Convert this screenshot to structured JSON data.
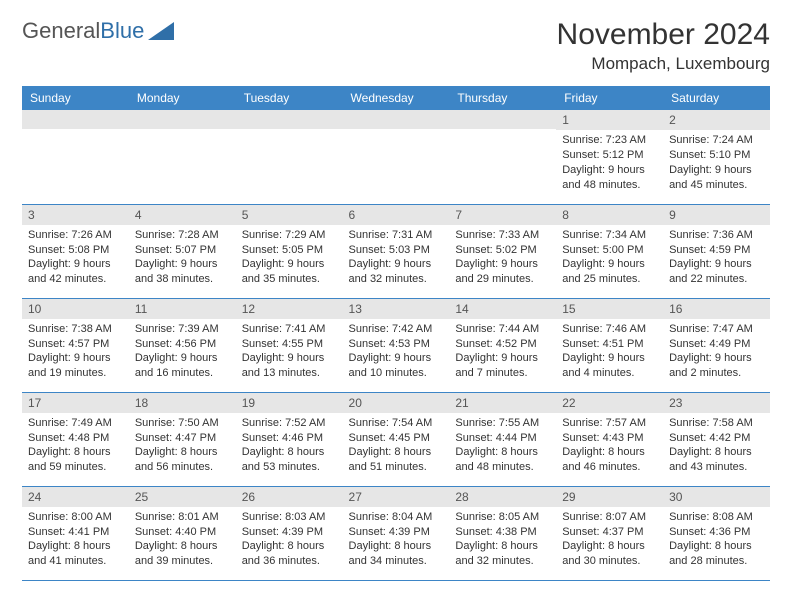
{
  "logo": {
    "text1": "General",
    "text2": "Blue"
  },
  "title": "November 2024",
  "location": "Mompach, Luxembourg",
  "day_headers": [
    "Sunday",
    "Monday",
    "Tuesday",
    "Wednesday",
    "Thursday",
    "Friday",
    "Saturday"
  ],
  "colors": {
    "header_bg": "#3d85c6",
    "header_text": "#ffffff",
    "daynum_bg": "#e6e6e6",
    "border": "#3d85c6",
    "logo_blue": "#2f6fa8"
  },
  "weeks": [
    [
      {
        "n": "",
        "sr": "",
        "ss": "",
        "dl": ""
      },
      {
        "n": "",
        "sr": "",
        "ss": "",
        "dl": ""
      },
      {
        "n": "",
        "sr": "",
        "ss": "",
        "dl": ""
      },
      {
        "n": "",
        "sr": "",
        "ss": "",
        "dl": ""
      },
      {
        "n": "",
        "sr": "",
        "ss": "",
        "dl": ""
      },
      {
        "n": "1",
        "sr": "Sunrise: 7:23 AM",
        "ss": "Sunset: 5:12 PM",
        "dl": "Daylight: 9 hours and 48 minutes."
      },
      {
        "n": "2",
        "sr": "Sunrise: 7:24 AM",
        "ss": "Sunset: 5:10 PM",
        "dl": "Daylight: 9 hours and 45 minutes."
      }
    ],
    [
      {
        "n": "3",
        "sr": "Sunrise: 7:26 AM",
        "ss": "Sunset: 5:08 PM",
        "dl": "Daylight: 9 hours and 42 minutes."
      },
      {
        "n": "4",
        "sr": "Sunrise: 7:28 AM",
        "ss": "Sunset: 5:07 PM",
        "dl": "Daylight: 9 hours and 38 minutes."
      },
      {
        "n": "5",
        "sr": "Sunrise: 7:29 AM",
        "ss": "Sunset: 5:05 PM",
        "dl": "Daylight: 9 hours and 35 minutes."
      },
      {
        "n": "6",
        "sr": "Sunrise: 7:31 AM",
        "ss": "Sunset: 5:03 PM",
        "dl": "Daylight: 9 hours and 32 minutes."
      },
      {
        "n": "7",
        "sr": "Sunrise: 7:33 AM",
        "ss": "Sunset: 5:02 PM",
        "dl": "Daylight: 9 hours and 29 minutes."
      },
      {
        "n": "8",
        "sr": "Sunrise: 7:34 AM",
        "ss": "Sunset: 5:00 PM",
        "dl": "Daylight: 9 hours and 25 minutes."
      },
      {
        "n": "9",
        "sr": "Sunrise: 7:36 AM",
        "ss": "Sunset: 4:59 PM",
        "dl": "Daylight: 9 hours and 22 minutes."
      }
    ],
    [
      {
        "n": "10",
        "sr": "Sunrise: 7:38 AM",
        "ss": "Sunset: 4:57 PM",
        "dl": "Daylight: 9 hours and 19 minutes."
      },
      {
        "n": "11",
        "sr": "Sunrise: 7:39 AM",
        "ss": "Sunset: 4:56 PM",
        "dl": "Daylight: 9 hours and 16 minutes."
      },
      {
        "n": "12",
        "sr": "Sunrise: 7:41 AM",
        "ss": "Sunset: 4:55 PM",
        "dl": "Daylight: 9 hours and 13 minutes."
      },
      {
        "n": "13",
        "sr": "Sunrise: 7:42 AM",
        "ss": "Sunset: 4:53 PM",
        "dl": "Daylight: 9 hours and 10 minutes."
      },
      {
        "n": "14",
        "sr": "Sunrise: 7:44 AM",
        "ss": "Sunset: 4:52 PM",
        "dl": "Daylight: 9 hours and 7 minutes."
      },
      {
        "n": "15",
        "sr": "Sunrise: 7:46 AM",
        "ss": "Sunset: 4:51 PM",
        "dl": "Daylight: 9 hours and 4 minutes."
      },
      {
        "n": "16",
        "sr": "Sunrise: 7:47 AM",
        "ss": "Sunset: 4:49 PM",
        "dl": "Daylight: 9 hours and 2 minutes."
      }
    ],
    [
      {
        "n": "17",
        "sr": "Sunrise: 7:49 AM",
        "ss": "Sunset: 4:48 PM",
        "dl": "Daylight: 8 hours and 59 minutes."
      },
      {
        "n": "18",
        "sr": "Sunrise: 7:50 AM",
        "ss": "Sunset: 4:47 PM",
        "dl": "Daylight: 8 hours and 56 minutes."
      },
      {
        "n": "19",
        "sr": "Sunrise: 7:52 AM",
        "ss": "Sunset: 4:46 PM",
        "dl": "Daylight: 8 hours and 53 minutes."
      },
      {
        "n": "20",
        "sr": "Sunrise: 7:54 AM",
        "ss": "Sunset: 4:45 PM",
        "dl": "Daylight: 8 hours and 51 minutes."
      },
      {
        "n": "21",
        "sr": "Sunrise: 7:55 AM",
        "ss": "Sunset: 4:44 PM",
        "dl": "Daylight: 8 hours and 48 minutes."
      },
      {
        "n": "22",
        "sr": "Sunrise: 7:57 AM",
        "ss": "Sunset: 4:43 PM",
        "dl": "Daylight: 8 hours and 46 minutes."
      },
      {
        "n": "23",
        "sr": "Sunrise: 7:58 AM",
        "ss": "Sunset: 4:42 PM",
        "dl": "Daylight: 8 hours and 43 minutes."
      }
    ],
    [
      {
        "n": "24",
        "sr": "Sunrise: 8:00 AM",
        "ss": "Sunset: 4:41 PM",
        "dl": "Daylight: 8 hours and 41 minutes."
      },
      {
        "n": "25",
        "sr": "Sunrise: 8:01 AM",
        "ss": "Sunset: 4:40 PM",
        "dl": "Daylight: 8 hours and 39 minutes."
      },
      {
        "n": "26",
        "sr": "Sunrise: 8:03 AM",
        "ss": "Sunset: 4:39 PM",
        "dl": "Daylight: 8 hours and 36 minutes."
      },
      {
        "n": "27",
        "sr": "Sunrise: 8:04 AM",
        "ss": "Sunset: 4:39 PM",
        "dl": "Daylight: 8 hours and 34 minutes."
      },
      {
        "n": "28",
        "sr": "Sunrise: 8:05 AM",
        "ss": "Sunset: 4:38 PM",
        "dl": "Daylight: 8 hours and 32 minutes."
      },
      {
        "n": "29",
        "sr": "Sunrise: 8:07 AM",
        "ss": "Sunset: 4:37 PM",
        "dl": "Daylight: 8 hours and 30 minutes."
      },
      {
        "n": "30",
        "sr": "Sunrise: 8:08 AM",
        "ss": "Sunset: 4:36 PM",
        "dl": "Daylight: 8 hours and 28 minutes."
      }
    ]
  ]
}
